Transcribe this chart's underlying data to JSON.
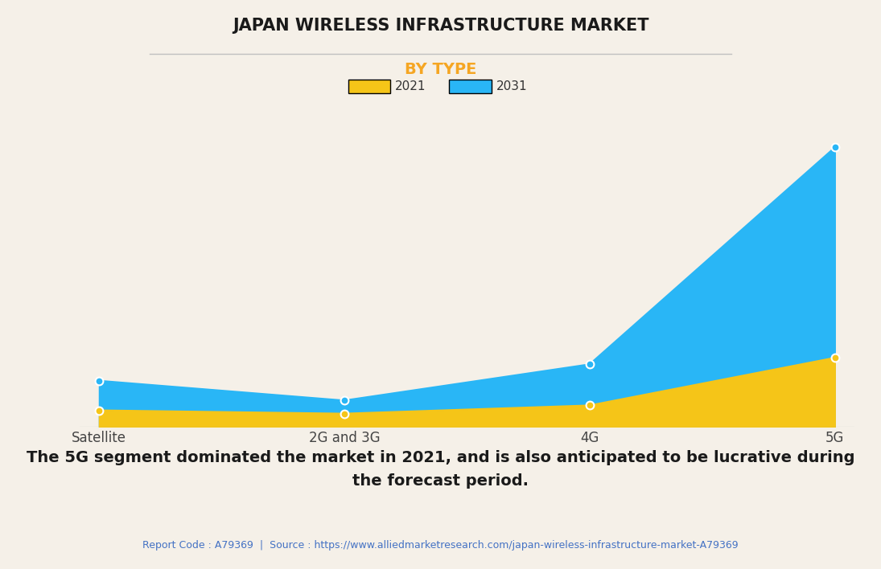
{
  "title": "JAPAN WIRELESS INFRASTRUCTURE MARKET",
  "subtitle": "BY TYPE",
  "categories": [
    "Satellite",
    "2G and 3G",
    "4G",
    "5G"
  ],
  "x_positions": [
    0,
    1,
    2,
    3
  ],
  "values_2021": [
    1.0,
    0.8,
    1.3,
    4.2
  ],
  "values_2031": [
    2.8,
    1.6,
    3.8,
    17.0
  ],
  "color_2021": "#F5C518",
  "color_2031": "#29B6F6",
  "background_color": "#F5F0E8",
  "title_color": "#1a1a1a",
  "subtitle_color": "#F5A623",
  "legend_labels": [
    "2021",
    "2031"
  ],
  "annotation_text": "The 5G segment dominated the market in 2021, and is also anticipated to be lucrative during\nthe forecast period.",
  "footer_text": "Report Code : A79369  |  Source : https://www.alliedmarketresearch.com/japan-wireless-infrastructure-market-A79369",
  "footer_color": "#4472C4",
  "grid_color": "#cccccc",
  "marker_size": 50,
  "ylim": [
    0,
    18.0
  ],
  "title_fontsize": 15,
  "subtitle_fontsize": 14,
  "annotation_fontsize": 14,
  "tick_fontsize": 12
}
